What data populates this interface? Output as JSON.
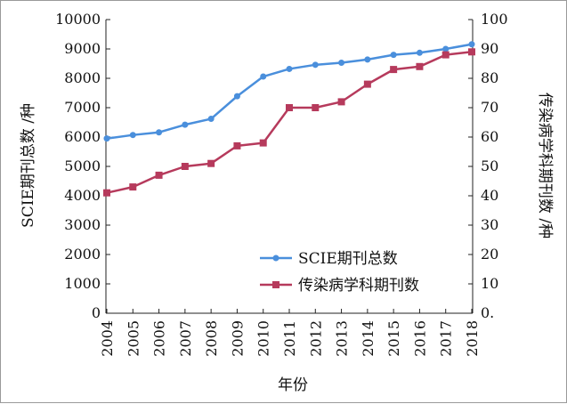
{
  "chart_data": {
    "type": "line",
    "x": [
      "2004",
      "2005",
      "2006",
      "2007",
      "2008",
      "2009",
      "2010",
      "2011",
      "2012",
      "2013",
      "2014",
      "2015",
      "2016",
      "2017",
      "2018"
    ],
    "xlabel": "年份",
    "ylabel_left": "SCIE期刊总数 /种",
    "ylabel_right": "传染病学科期刊数 /种",
    "ylim_left": [
      0,
      10000
    ],
    "ylim_right": [
      0,
      100
    ],
    "yticks_left": [
      "0",
      "1000",
      "2000",
      "3000",
      "4000",
      "5000",
      "6000",
      "7000",
      "8000",
      "9000",
      "10000"
    ],
    "yticks_right": [
      "0.",
      "10",
      "20",
      "30",
      "40",
      "50",
      "60",
      "70",
      "80",
      "90",
      "100"
    ],
    "grid": false,
    "legend_position": "lower-right",
    "series": [
      {
        "name": "SCIE期刊总数",
        "axis": "left",
        "color": "#4a8fdc",
        "marker": "circle",
        "values": [
          5950,
          6070,
          6160,
          6420,
          6620,
          7390,
          8060,
          8320,
          8460,
          8530,
          8640,
          8800,
          8870,
          9000,
          9160
        ]
      },
      {
        "name": "传染病学科期刊数",
        "axis": "right",
        "color": "#b63a5c",
        "marker": "square",
        "values": [
          41,
          43,
          47,
          50,
          51,
          57,
          58,
          70,
          70,
          72,
          78,
          83,
          84,
          88,
          89
        ]
      }
    ]
  }
}
